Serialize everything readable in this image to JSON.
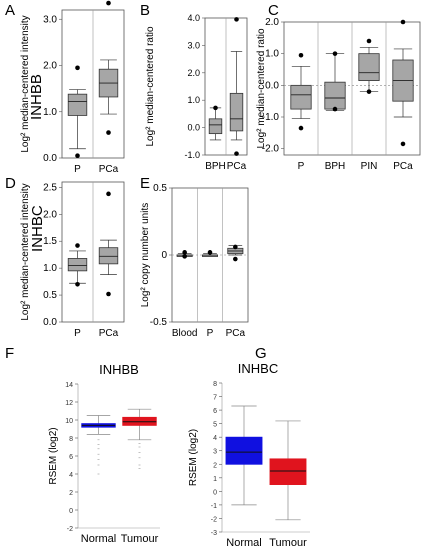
{
  "figure": {
    "row_label_top": "INHBB",
    "row_label_mid": "INHBC"
  },
  "chart_data": [
    {
      "id": "A",
      "type": "boxplot",
      "panel_letter": "A",
      "ylabel": "Log² median-centered intensity",
      "ylim": [
        0,
        3.2
      ],
      "yticks": [
        "0.0",
        "1.0",
        "2.0",
        "3.0"
      ],
      "ytick_values": [
        0,
        1,
        2,
        3
      ],
      "categories": [
        "P",
        "PCa"
      ],
      "boxes": [
        {
          "min": 0.2,
          "q1": 0.92,
          "median": 1.22,
          "q3": 1.38,
          "max": 1.48,
          "outliers": [
            1.95,
            0.05
          ]
        },
        {
          "min": 0.95,
          "q1": 1.32,
          "median": 1.62,
          "q3": 1.92,
          "max": 2.12,
          "outliers": [
            3.35,
            0.55
          ]
        }
      ]
    },
    {
      "id": "B",
      "type": "boxplot",
      "panel_letter": "B",
      "ylabel": "Log² median-centered ratio",
      "ylim": [
        -1.0,
        4.0
      ],
      "yticks": [
        "-1.0",
        "0.0",
        "1.0",
        "2.0",
        "3.0",
        "4.0"
      ],
      "ytick_values": [
        -1,
        0,
        1,
        2,
        3,
        4
      ],
      "categories": [
        "BPH",
        "PCa"
      ],
      "boxes": [
        {
          "min": -0.45,
          "q1": -0.22,
          "median": 0.1,
          "q3": 0.32,
          "max": 0.72,
          "outliers": [
            0.72
          ]
        },
        {
          "min": -0.45,
          "q1": -0.12,
          "median": 0.32,
          "q3": 1.25,
          "max": 2.78,
          "outliers": [
            3.95,
            -0.95
          ]
        }
      ]
    },
    {
      "id": "C",
      "type": "boxplot",
      "panel_letter": "C",
      "ylabel": "Log² median-centered ratio",
      "ylim": [
        -2.2,
        2.0
      ],
      "yticks": [
        "-2.0",
        "-1.0",
        "0.0",
        "1.0",
        "2.0"
      ],
      "ytick_values": [
        -2,
        -1,
        0,
        1,
        2
      ],
      "categories": [
        "P",
        "BPH",
        "PIN",
        "PCa"
      ],
      "boxes": [
        {
          "min": -1.05,
          "q1": -0.75,
          "median": -0.3,
          "q3": 0.0,
          "max": 0.6,
          "outliers": [
            0.95,
            -1.35
          ]
        },
        {
          "min": -0.8,
          "q1": -0.75,
          "median": -0.4,
          "q3": 0.1,
          "max": 1.0,
          "outliers": [
            1.0,
            -0.75
          ]
        },
        {
          "min": -0.2,
          "q1": 0.15,
          "median": 0.4,
          "q3": 1.0,
          "max": 1.2,
          "outliers": [
            1.4,
            -0.2
          ]
        },
        {
          "min": -1.0,
          "q1": -0.5,
          "median": 0.15,
          "q3": 0.8,
          "max": 1.15,
          "outliers": [
            2.0,
            -1.85
          ]
        }
      ]
    },
    {
      "id": "D",
      "type": "boxplot",
      "panel_letter": "D",
      "ylabel": "Log² median-centered intensity",
      "ylim": [
        0,
        2.6
      ],
      "yticks": [
        "0.0",
        "0.5",
        "1.0",
        "1.5",
        "2.0",
        "2.5"
      ],
      "ytick_values": [
        0,
        0.5,
        1,
        1.5,
        2,
        2.5
      ],
      "categories": [
        "P",
        "PCa"
      ],
      "boxes": [
        {
          "min": 0.72,
          "q1": 0.95,
          "median": 1.05,
          "q3": 1.18,
          "max": 1.32,
          "outliers": [
            1.42,
            0.7
          ]
        },
        {
          "min": 0.88,
          "q1": 1.08,
          "median": 1.22,
          "q3": 1.38,
          "max": 1.52,
          "outliers": [
            2.38,
            0.52
          ]
        }
      ]
    },
    {
      "id": "E",
      "type": "boxplot",
      "panel_letter": "E",
      "ylabel": "Log² copy number units",
      "ylim": [
        -0.5,
        0.5
      ],
      "yticks": [
        "-0.5",
        "0",
        "0.5"
      ],
      "ytick_values": [
        -0.5,
        0,
        0.5
      ],
      "categories": [
        "Blood",
        "P",
        "PCa"
      ],
      "boxes": [
        {
          "min": 0.0,
          "q1": 0.0,
          "median": 0.0,
          "q3": 0.0,
          "max": 0.01,
          "outliers": [
            0.02,
            -0.01
          ]
        },
        {
          "min": 0.0,
          "q1": 0.0,
          "median": 0.0,
          "q3": 0.0,
          "max": 0.01,
          "outliers": [
            0.02
          ]
        },
        {
          "min": 0.0,
          "q1": 0.01,
          "median": 0.03,
          "q3": 0.05,
          "max": 0.07,
          "outliers": [
            0.06,
            -0.03
          ]
        }
      ]
    },
    {
      "id": "F",
      "type": "boxplot",
      "panel_letter": "F",
      "title": "INHBB",
      "ylabel": "RSEM (log2)",
      "ylim": [
        -2,
        14
      ],
      "yticks": [
        "-2",
        "0",
        "2",
        "4",
        "6",
        "8",
        "10",
        "12",
        "14"
      ],
      "ytick_values": [
        -2,
        0,
        2,
        4,
        6,
        8,
        10,
        12,
        14
      ],
      "categories": [
        "Normal",
        "Tumour"
      ],
      "colors": [
        "#1010e0",
        "#e0141e"
      ],
      "boxes": [
        {
          "min": 8.4,
          "q1": 9.2,
          "median": 9.4,
          "q3": 9.6,
          "max": 10.5,
          "outliers": [
            7.8,
            7.3,
            6.8,
            6.2,
            5.6,
            5.0,
            4.0
          ]
        },
        {
          "min": 7.8,
          "q1": 9.4,
          "median": 9.8,
          "q3": 10.3,
          "max": 11.2,
          "outliers": [
            7.4,
            7.0,
            6.4,
            5.8,
            5.0,
            4.6
          ]
        }
      ]
    },
    {
      "id": "G",
      "type": "boxplot",
      "panel_letter": "G",
      "title": "INHBC",
      "ylabel": "RSEM (log2)",
      "ylim": [
        -3,
        8
      ],
      "yticks": [
        "-3",
        "-2",
        "-1",
        "0",
        "1",
        "2",
        "3",
        "4",
        "5",
        "6",
        "7",
        "8"
      ],
      "ytick_values": [
        -3,
        -2,
        -1,
        0,
        1,
        2,
        3,
        4,
        5,
        6,
        7,
        8
      ],
      "categories": [
        "Normal",
        "Tumour"
      ],
      "colors": [
        "#1010e0",
        "#e0141e"
      ],
      "boxes": [
        {
          "min": -1.0,
          "q1": 2.0,
          "median": 2.9,
          "q3": 4.0,
          "max": 6.3,
          "outliers": []
        },
        {
          "min": -2.1,
          "q1": 0.5,
          "median": 1.5,
          "q3": 2.4,
          "max": 5.2,
          "outliers": []
        }
      ]
    }
  ]
}
